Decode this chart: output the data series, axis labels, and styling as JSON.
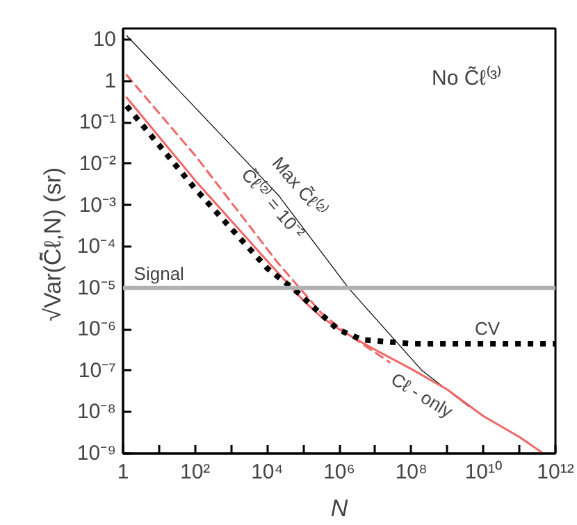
{
  "chart_data": {
    "type": "line",
    "xlabel": "N",
    "ylabel": "√Var(Ĉ̃ℓ,N)  (sr)",
    "log": "xy",
    "grid": false,
    "xlim": [
      1,
      1000000000000.0
    ],
    "ylim": [
      1e-09,
      18.7
    ],
    "xticks": [
      1,
      {
        "value": 10,
        "label": null
      },
      {
        "value": 100,
        "label": "10²"
      },
      {
        "value": 1000,
        "label": null
      },
      {
        "value": 10000.0,
        "label": "10⁴"
      },
      {
        "value": 100000.0,
        "label": null
      },
      {
        "value": 1000000.0,
        "label": "10⁶"
      },
      {
        "value": 10000000.0,
        "label": null
      },
      {
        "value": 100000000.0,
        "label": "10⁸"
      },
      {
        "value": 1000000000.0,
        "label": null
      },
      {
        "value": 10000000000.0,
        "label": "10¹⁰"
      },
      {
        "value": 100000000000.0,
        "label": null
      },
      {
        "value": 1000000000000.0,
        "label": "10¹²"
      }
    ],
    "yticks": [
      {
        "value": 1e-09,
        "label": "10⁻⁹"
      },
      {
        "value": 1e-08,
        "label": "10⁻⁸"
      },
      {
        "value": 1e-07,
        "label": "10⁻⁷"
      },
      {
        "value": 1e-06,
        "label": "10⁻⁶"
      },
      {
        "value": 1e-05,
        "label": "10⁻⁵"
      },
      {
        "value": 0.0001,
        "label": "10⁻⁴"
      },
      {
        "value": 0.001,
        "label": "10⁻³"
      },
      {
        "value": 0.01,
        "label": "10⁻²"
      },
      {
        "value": 0.1,
        "label": "10⁻¹"
      },
      1,
      10
    ],
    "series": [
      {
        "name": "Max C̃ℓ⁽²⁾",
        "color": "#000000",
        "line_style": "solid",
        "x": [
          1.26,
          100,
          21000.0,
          1800000.0,
          200000000.0,
          4000000000.0
        ],
        "values": [
          12.6,
          0.23,
          0.0017,
          1e-05,
          1e-07,
          1.35e-08
        ]
      },
      {
        "name": "C̃ℓ⁽²⁾ = 10⁻²",
        "color": "#f06868",
        "line_style": "dashed",
        "x": [
          1.26,
          100,
          20000.0,
          316000.0,
          1600000.0,
          25000000.0
        ],
        "values": [
          1.4,
          0.016,
          4e-05,
          2.5e-06,
          8e-07,
          1.6e-07
        ]
      },
      {
        "name": "Cℓ - only",
        "color": "#f06868",
        "line_style": "solid",
        "x": [
          1.26,
          100,
          10000.0,
          100000.0,
          316000.0,
          1000000.0,
          3160000.0,
          10000000.0,
          100000000.0,
          1000000000.0,
          10000000000.0,
          100000000000.0,
          460000000000.0
        ],
        "values": [
          0.4,
          0.004,
          4.5e-05,
          5e-06,
          2e-06,
          1e-06,
          5.6e-07,
          3.2e-07,
          1.1e-07,
          3.5e-08,
          8e-09,
          2.5e-09,
          1e-09
        ]
      },
      {
        "name": "CV",
        "color": "#000000",
        "line_style": "dotted",
        "x": [
          1.26,
          100,
          10000.0,
          68000.0,
          900000.0,
          4400000.0,
          100000000.0,
          10000000000.0,
          1000000000000.0
        ],
        "values": [
          0.25,
          0.0025,
          3e-05,
          8e-06,
          1e-06,
          5.6e-07,
          4.5e-07,
          4.5e-07,
          4.5e-07
        ]
      }
    ],
    "ref_lines": [
      {
        "axis": "y",
        "value": 1e-05,
        "label": "Signal",
        "color": "#b0b0b0"
      }
    ],
    "annotations": [
      "No C̃ℓ⁽³⁾"
    ]
  }
}
